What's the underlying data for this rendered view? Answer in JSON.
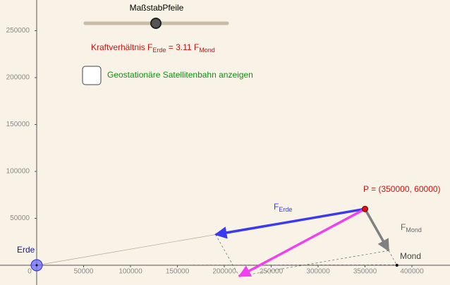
{
  "slider": {
    "label": "MaßstabPfeile"
  },
  "ratio_text": {
    "parts": [
      "Kraftverhältnis F",
      "Erde",
      " = 3.11 F",
      "Mond"
    ]
  },
  "checkbox": {
    "label": "Geostationäre Satellitenbahn anzeigen"
  },
  "axes": {
    "xticks": [
      0,
      50000,
      100000,
      150000,
      200000,
      250000,
      300000,
      350000,
      400000
    ],
    "yticks": [
      50000,
      100000,
      150000,
      200000,
      250000
    ]
  },
  "points": [
    {
      "label": "Erde",
      "x": 0,
      "y": 0
    },
    {
      "label": "P = (350000, 60000)",
      "x": 350000,
      "y": 60000
    },
    {
      "label": "Mond",
      "x": 384000,
      "y": 0
    }
  ],
  "vectors": [
    {
      "label": "F",
      "sub": "Erde"
    },
    {
      "label": "F",
      "sub": "Mond"
    }
  ]
}
